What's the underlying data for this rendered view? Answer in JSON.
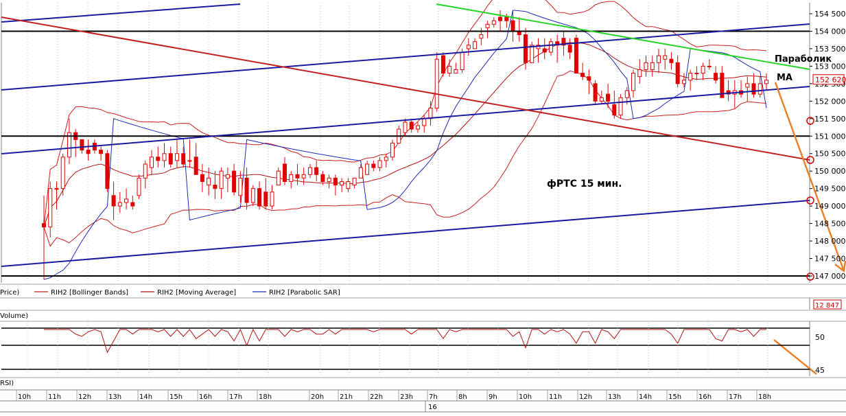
{
  "chart_data": [
    {
      "type": "candlestick",
      "title": "фРТС   15 мин.",
      "instrument": "RIH2",
      "labels": {
        "parabolic": "Параболик",
        "ma": "MA"
      },
      "legend": [
        "Price)",
        "RIH2 [Bollinger Bands]",
        "RIH2 [Moving Average]",
        "RIH2 [Parabolic SAR]"
      ],
      "ylim": [
        146900,
        154650
      ],
      "y_ticks": [
        147000,
        147500,
        148000,
        148500,
        149000,
        149500,
        150000,
        150500,
        151000,
        151500,
        152000,
        152500,
        153000,
        153500,
        154000,
        154500
      ],
      "y_tick_labels": [
        "147 000",
        "147 500",
        "148 000",
        "148 500",
        "149 000",
        "149 500",
        "150 000",
        "150 500",
        "151 000",
        "151 500",
        "152 000",
        "152 500",
        "153 000",
        "153 500",
        "154 000",
        "154 500"
      ],
      "last_price": 152620,
      "last_price_label": "152 620",
      "horizontal_levels": [
        147000,
        151000,
        154000
      ],
      "candles_ohlc": [
        [
          148500,
          149300,
          146900,
          148400
        ],
        [
          148400,
          149700,
          148100,
          149500
        ],
        [
          149500,
          149700,
          148900,
          149500
        ],
        [
          149500,
          150500,
          149300,
          150400
        ],
        [
          150400,
          151500,
          150200,
          151100
        ],
        [
          151100,
          151200,
          150400,
          150900
        ],
        [
          150900,
          150900,
          150500,
          150600
        ],
        [
          150600,
          150900,
          150300,
          150500
        ],
        [
          150800,
          150900,
          150500,
          150600
        ],
        [
          150600,
          150700,
          150300,
          150500
        ],
        [
          150500,
          150600,
          149400,
          149500
        ],
        [
          149300,
          149700,
          148600,
          149000
        ],
        [
          149000,
          149400,
          148800,
          149100
        ],
        [
          149100,
          149500,
          148900,
          149200
        ],
        [
          149100,
          149300,
          148900,
          149000
        ],
        [
          149300,
          149900,
          149200,
          149800
        ],
        [
          149800,
          150300,
          149500,
          150200
        ],
        [
          150100,
          150600,
          149900,
          150400
        ],
        [
          150400,
          150700,
          150100,
          150300
        ],
        [
          150300,
          150800,
          150100,
          150500
        ],
        [
          150500,
          150700,
          150100,
          150200
        ],
        [
          150300,
          150900,
          150100,
          150500
        ],
        [
          150500,
          150700,
          150100,
          150200
        ],
        [
          150300,
          150900,
          150100,
          150300
        ],
        [
          150400,
          150800,
          150000,
          149900
        ],
        [
          149900,
          150200,
          149400,
          149700
        ],
        [
          149600,
          150100,
          149300,
          149800
        ],
        [
          149600,
          150000,
          149200,
          149500
        ],
        [
          149500,
          150100,
          149200,
          150000
        ],
        [
          149800,
          150100,
          149400,
          149900
        ],
        [
          150000,
          150200,
          149300,
          149400
        ],
        [
          149300,
          150000,
          149100,
          149800
        ],
        [
          149800,
          150100,
          148900,
          149100
        ],
        [
          149100,
          149600,
          149000,
          149500
        ],
        [
          149500,
          149700,
          148900,
          149000
        ],
        [
          149400,
          149800,
          148900,
          149000
        ],
        [
          149000,
          149600,
          148900,
          149400
        ],
        [
          149600,
          150100,
          149600,
          150000
        ],
        [
          150200,
          150400,
          149600,
          149700
        ],
        [
          149700,
          150000,
          149500,
          149900
        ],
        [
          149900,
          150200,
          149600,
          149800
        ],
        [
          149800,
          150100,
          149600,
          149900
        ],
        [
          149900,
          150200,
          149800,
          150100
        ],
        [
          150100,
          150300,
          149700,
          149900
        ],
        [
          149900,
          150000,
          149600,
          149700
        ],
        [
          149700,
          149900,
          149500,
          149800
        ],
        [
          149800,
          149900,
          149300,
          149600
        ],
        [
          149600,
          149800,
          149400,
          149700
        ],
        [
          149500,
          149800,
          149400,
          149700
        ],
        [
          149600,
          149800,
          149500,
          149800
        ],
        [
          149800,
          150200,
          149800,
          150100
        ],
        [
          149900,
          150300,
          149900,
          150200
        ],
        [
          150200,
          150300,
          150000,
          150100
        ],
        [
          150100,
          150400,
          150000,
          150300
        ],
        [
          150300,
          150500,
          150100,
          150400
        ],
        [
          150400,
          150900,
          150300,
          150800
        ],
        [
          150800,
          151300,
          150800,
          151200
        ],
        [
          151100,
          151500,
          151000,
          151400
        ],
        [
          151400,
          151500,
          151100,
          151200
        ],
        [
          151200,
          151400,
          151100,
          151300
        ],
        [
          151300,
          151600,
          151100,
          151500
        ],
        [
          151500,
          152000,
          151300,
          151800
        ],
        [
          151800,
          153400,
          151700,
          153200
        ],
        [
          153300,
          153400,
          152700,
          152800
        ],
        [
          152800,
          153200,
          152700,
          153000
        ],
        [
          152800,
          153100,
          152800,
          152900
        ],
        [
          152900,
          153500,
          152800,
          153400
        ],
        [
          153500,
          153800,
          153300,
          153600
        ],
        [
          153500,
          153800,
          153500,
          153700
        ],
        [
          153800,
          154100,
          153600,
          153900
        ],
        [
          154100,
          154300,
          153800,
          154200
        ],
        [
          154200,
          154400,
          154100,
          154300
        ],
        [
          154400,
          154600,
          154000,
          154300
        ],
        [
          154400,
          154500,
          154100,
          154300
        ],
        [
          154300,
          154600,
          153700,
          154000
        ],
        [
          154000,
          154400,
          153700,
          153900
        ],
        [
          153900,
          154100,
          152900,
          153100
        ],
        [
          153100,
          153700,
          153100,
          153600
        ],
        [
          153500,
          153800,
          153100,
          153600
        ],
        [
          153500,
          153800,
          153200,
          153400
        ],
        [
          153400,
          153800,
          153300,
          153700
        ],
        [
          153700,
          153900,
          153100,
          153600
        ],
        [
          153800,
          154000,
          153300,
          153600
        ],
        [
          153600,
          153800,
          153200,
          153400
        ],
        [
          153800,
          153900,
          152800,
          152800
        ],
        [
          152800,
          153100,
          152600,
          152700
        ],
        [
          152700,
          152900,
          152200,
          152600
        ],
        [
          152500,
          152600,
          151900,
          152000
        ],
        [
          152000,
          152300,
          151900,
          152100
        ],
        [
          152200,
          152500,
          151800,
          152000
        ],
        [
          151900,
          152300,
          151500,
          151600
        ],
        [
          151600,
          152200,
          151500,
          152100
        ],
        [
          152100,
          152400,
          151900,
          152300
        ],
        [
          152300,
          152900,
          152100,
          152800
        ],
        [
          152700,
          153200,
          152500,
          152900
        ],
        [
          152900,
          153300,
          152700,
          153100
        ],
        [
          152900,
          153300,
          152700,
          153100
        ],
        [
          153100,
          153500,
          152800,
          153300
        ],
        [
          153200,
          153500,
          152900,
          153300
        ],
        [
          153200,
          153400,
          152900,
          153100
        ],
        [
          153100,
          153300,
          152400,
          152500
        ],
        [
          152500,
          152800,
          152400,
          152600
        ],
        [
          152600,
          152900,
          152300,
          152800
        ],
        [
          152800,
          153000,
          152600,
          152800
        ],
        [
          152800,
          153100,
          152600,
          153000
        ],
        [
          153000,
          153200,
          152900,
          153000
        ],
        [
          152800,
          153000,
          152500,
          152600
        ],
        [
          152800,
          153000,
          152100,
          152100
        ],
        [
          152300,
          152600,
          152000,
          152200
        ],
        [
          152200,
          152600,
          151800,
          152300
        ],
        [
          152300,
          152600,
          152100,
          152200
        ],
        [
          152400,
          152700,
          152000,
          152500
        ],
        [
          152500,
          152800,
          152100,
          152200
        ],
        [
          152200,
          152700,
          152100,
          152500
        ],
        [
          152500,
          152800,
          152300,
          152600
        ]
      ]
    },
    {
      "type": "line",
      "name": "Volume",
      "label": "Volume)",
      "last_value": 12847,
      "last_value_label": "12 847"
    },
    {
      "type": "line",
      "name": "RSI",
      "label": "RSI)",
      "y_ticks": [
        45,
        50
      ],
      "y_tick_labels": [
        "45",
        "50"
      ]
    }
  ],
  "time_axis": {
    "hours": [
      "10h",
      "11h",
      "12h",
      "13h",
      "14h",
      "15h",
      "16h",
      "17h",
      "18h",
      "20h",
      "21h",
      "22h",
      "23h",
      "7h",
      "8h",
      "9h",
      "10h",
      "11h",
      "12h",
      "13h",
      "14h",
      "15h",
      "16h",
      "17h",
      "18h"
    ],
    "date_label": "16"
  },
  "colors": {
    "background": "#ffffff",
    "candle_up": "#ffffff",
    "candle_down": "#e00000",
    "bollinger": "#c81e1e",
    "moving_average": "#b01010",
    "parabolic_sar": "#1c2cb0",
    "channel_blue": "#1a1aa0",
    "trend_red": "#c02020",
    "trend_green": "#28d428",
    "forecast_orange": "#e8822a",
    "level_black": "#000000",
    "price_box": "#cc0000"
  }
}
